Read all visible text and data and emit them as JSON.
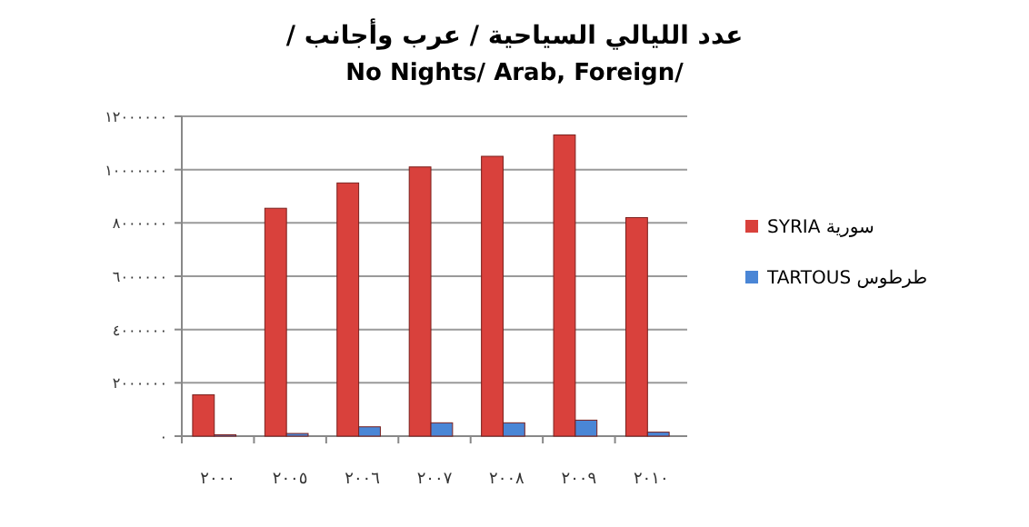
{
  "chart_data": {
    "type": "bar",
    "title": "عدد الليالي السياحية / عرب وأجانب /",
    "subtitle": "No Nights/ Arab, Foreign/",
    "categories": [
      "٢٠٠٠",
      "٢٠٠٥",
      "٢٠٠٦",
      "٢٠٠٧",
      "٢٠٠٨",
      "٢٠٠٩",
      "٢٠١٠"
    ],
    "series": [
      {
        "name": "SYRIA   سورية",
        "color": "#d9413c",
        "values": [
          1550000,
          8550000,
          9500000,
          10100000,
          10500000,
          11300000,
          8200000
        ]
      },
      {
        "name": "TARTOUS   طرطوس",
        "color": "#4a86d6",
        "values": [
          50000,
          100000,
          350000,
          500000,
          500000,
          600000,
          150000
        ]
      }
    ],
    "ylim": [
      0,
      12000000
    ],
    "yticks": [
      {
        "value": 0,
        "label": "٠"
      },
      {
        "value": 2000000,
        "label": "٢٠٠٠٠٠٠"
      },
      {
        "value": 4000000,
        "label": "٤٠٠٠٠٠٠"
      },
      {
        "value": 6000000,
        "label": "٦٠٠٠٠٠٠"
      },
      {
        "value": 8000000,
        "label": "٨٠٠٠٠٠٠"
      },
      {
        "value": 10000000,
        "label": "١٠٠٠٠٠٠٠"
      },
      {
        "value": 12000000,
        "label": "١٢٠٠٠٠٠٠"
      }
    ],
    "grid": "y",
    "legend": "right"
  }
}
